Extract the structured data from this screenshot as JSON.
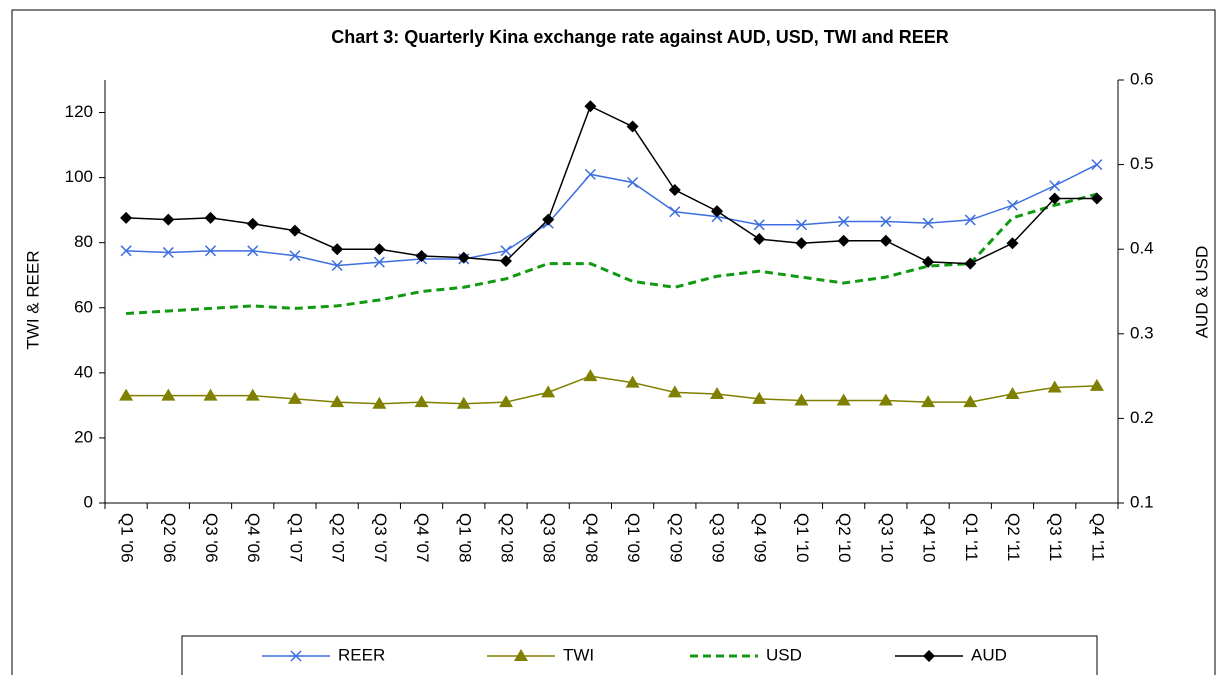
{
  "chart_data": {
    "type": "line",
    "title": "Chart 3: Quarterly Kina exchange rate against AUD,  USD, TWI and REER",
    "ylabel": "TWI & REER",
    "y2label": "AUD & USD",
    "categories": [
      "Q1 '06",
      "Q2 '06",
      "Q3 '06",
      "Q4 '06",
      "Q1 '07",
      "Q2 '07",
      "Q3 '07",
      "Q4 '07",
      "Q1 '08",
      "Q2 '08",
      "Q3 '08",
      "Q4 '08",
      "Q1 '09",
      "Q2 '09",
      "Q3 '09",
      "Q4 '09",
      "Q1 '10",
      "Q2 '10",
      "Q3 '10",
      "Q4 '10",
      "Q1 '11",
      "Q2 '11",
      "Q3 '11",
      "Q4 '11"
    ],
    "ylim": [
      0,
      130
    ],
    "yticks": [
      0,
      20,
      40,
      60,
      80,
      100,
      120
    ],
    "y2lim": [
      0.1,
      0.6
    ],
    "y2ticks": [
      0.1,
      0.2,
      0.3,
      0.4,
      0.5,
      0.6
    ],
    "series": [
      {
        "name": "REER",
        "color": "#3d6fe0",
        "marker": "x",
        "values": [
          77.5,
          77,
          77.5,
          77.5,
          76,
          73,
          74,
          75,
          75,
          77.5,
          86,
          101,
          98.5,
          89.5,
          88,
          85.5,
          85.5,
          86.5,
          86.5,
          86,
          87,
          91.5,
          97.5,
          104
        ]
      },
      {
        "name": "TWI",
        "color": "#808000",
        "marker": "triangle",
        "values": [
          33,
          33,
          33,
          33,
          32,
          31,
          30.5,
          31,
          30.5,
          31,
          34,
          39,
          37,
          34,
          33.5,
          32,
          31.5,
          31.5,
          31.5,
          31,
          31,
          33.5,
          35.5,
          36
        ]
      },
      {
        "name": "USD",
        "color": "#119911",
        "dashed": true,
        "axis": "y2",
        "values": [
          0.324,
          0.327,
          0.33,
          0.333,
          0.33,
          0.333,
          0.34,
          0.35,
          0.355,
          0.365,
          0.383,
          0.383,
          0.362,
          0.355,
          0.368,
          0.374,
          0.367,
          0.36,
          0.367,
          0.38,
          0.383,
          0.437,
          0.452,
          0.465
        ]
      },
      {
        "name": "AUD",
        "color": "#000000",
        "marker": "diamond",
        "axis": "y2",
        "values": [
          0.437,
          0.435,
          0.437,
          0.43,
          0.422,
          0.4,
          0.4,
          0.392,
          0.39,
          0.386,
          0.435,
          0.569,
          0.545,
          0.47,
          0.445,
          0.412,
          0.407,
          0.41,
          0.41,
          0.385,
          0.383,
          0.407,
          0.46,
          0.46
        ]
      }
    ]
  }
}
